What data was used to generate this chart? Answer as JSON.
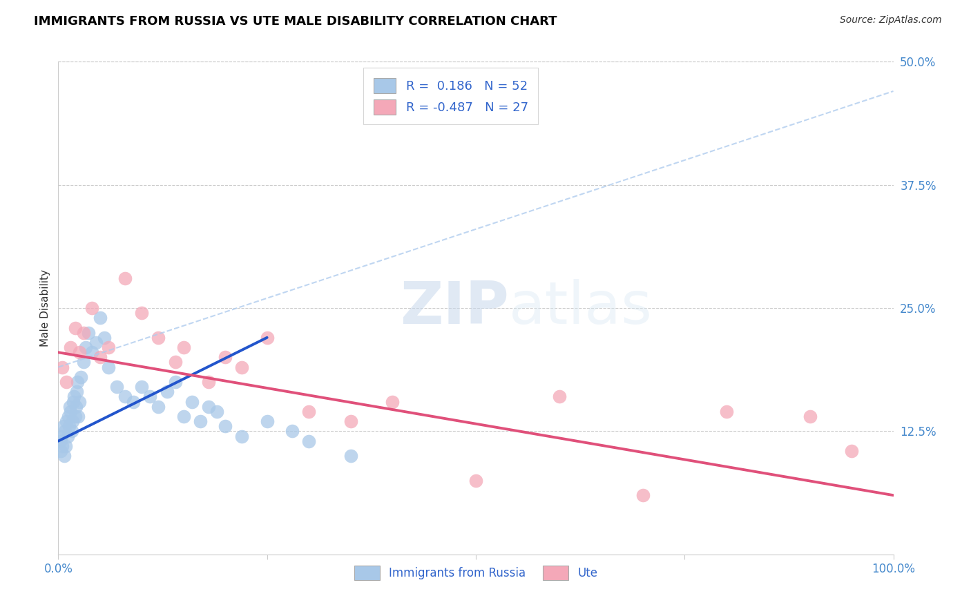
{
  "title": "IMMIGRANTS FROM RUSSIA VS UTE MALE DISABILITY CORRELATION CHART",
  "source": "Source: ZipAtlas.com",
  "ylabel": "Male Disability",
  "xlim": [
    0,
    100
  ],
  "ylim": [
    0,
    50
  ],
  "y_ticks_right": [
    12.5,
    25.0,
    37.5,
    50.0
  ],
  "y_tick_labels_right": [
    "12.5%",
    "25.0%",
    "37.5%",
    "50.0%"
  ],
  "series1_label": "Immigrants from Russia",
  "series2_label": "Ute",
  "series1_R": "0.186",
  "series1_N": "52",
  "series2_R": "-0.487",
  "series2_N": "27",
  "series1_color": "#a8c8e8",
  "series2_color": "#f4a8b8",
  "trend1_color": "#2255cc",
  "trend2_color": "#e0507a",
  "dashed_color": "#b0ccee",
  "watermark_color": "#dde8f5",
  "series1_x": [
    0.2,
    0.3,
    0.4,
    0.5,
    0.6,
    0.7,
    0.8,
    0.9,
    1.0,
    1.1,
    1.2,
    1.3,
    1.4,
    1.5,
    1.6,
    1.7,
    1.8,
    1.9,
    2.0,
    2.1,
    2.2,
    2.3,
    2.4,
    2.5,
    2.7,
    3.0,
    3.3,
    3.6,
    4.0,
    4.5,
    5.0,
    5.5,
    6.0,
    7.0,
    8.0,
    9.0,
    10.0,
    11.0,
    12.0,
    13.0,
    14.0,
    15.0,
    16.0,
    17.0,
    18.0,
    19.0,
    20.0,
    22.0,
    25.0,
    28.0,
    30.0,
    35.0
  ],
  "series1_y": [
    11.5,
    10.5,
    12.0,
    11.0,
    13.0,
    10.0,
    12.5,
    11.0,
    13.5,
    12.0,
    14.0,
    13.0,
    15.0,
    14.5,
    12.5,
    13.5,
    15.5,
    16.0,
    14.0,
    15.0,
    16.5,
    17.5,
    14.0,
    15.5,
    18.0,
    19.5,
    21.0,
    22.5,
    20.5,
    21.5,
    24.0,
    22.0,
    19.0,
    17.0,
    16.0,
    15.5,
    17.0,
    16.0,
    15.0,
    16.5,
    17.5,
    14.0,
    15.5,
    13.5,
    15.0,
    14.5,
    13.0,
    12.0,
    13.5,
    12.5,
    11.5,
    10.0
  ],
  "series2_x": [
    0.5,
    1.0,
    1.5,
    2.0,
    2.5,
    3.0,
    4.0,
    5.0,
    6.0,
    8.0,
    10.0,
    12.0,
    14.0,
    15.0,
    18.0,
    20.0,
    22.0,
    25.0,
    30.0,
    35.0,
    40.0,
    50.0,
    60.0,
    70.0,
    80.0,
    90.0,
    95.0
  ],
  "series2_y": [
    19.0,
    17.5,
    21.0,
    23.0,
    20.5,
    22.5,
    25.0,
    20.0,
    21.0,
    28.0,
    24.5,
    22.0,
    19.5,
    21.0,
    17.5,
    20.0,
    19.0,
    22.0,
    14.5,
    13.5,
    15.5,
    7.5,
    16.0,
    6.0,
    14.5,
    14.0,
    10.5
  ],
  "trend1_x0": 0.0,
  "trend1_y0": 11.5,
  "trend1_x1": 25.0,
  "trend1_y1": 22.0,
  "trend2_x0": 0.0,
  "trend2_y0": 20.5,
  "trend2_x1": 100.0,
  "trend2_y1": 6.0,
  "dash_x0": 0.0,
  "dash_y0": 19.0,
  "dash_x1": 100.0,
  "dash_y1": 47.0
}
